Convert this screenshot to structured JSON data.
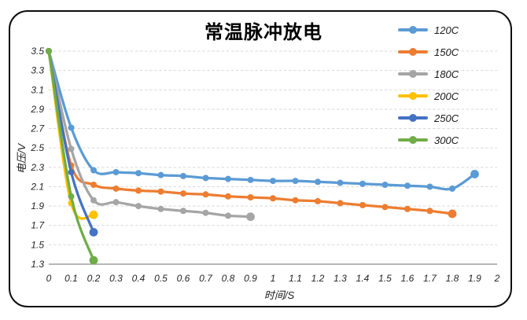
{
  "chart": {
    "title": "常温脉冲放电",
    "x_axis_title": "时间/S",
    "y_axis_title": "电压/V"
  },
  "chart_data": {
    "type": "line",
    "title": "常温脉冲放电",
    "xlabel": "时间/S",
    "ylabel": "电压/V",
    "xlim": [
      0,
      2
    ],
    "ylim": [
      1.3,
      3.5
    ],
    "x_ticks": [
      "0",
      "0.1",
      "0.2",
      "0.3",
      "0.4",
      "0.5",
      "0.6",
      "0.7",
      "0.8",
      "0.9",
      "1",
      "1.1",
      "1.2",
      "1.3",
      "1.4",
      "1.5",
      "1.6",
      "1.7",
      "1.8",
      "1.9",
      "2"
    ],
    "y_ticks": [
      "3.5",
      "3.3",
      "3.1",
      "2.9",
      "2.7",
      "2.5",
      "2.3",
      "2.1",
      "1.9",
      "1.7",
      "1.5",
      "1.3"
    ],
    "grid": "horizontal dashed gridlines every 0.2 V, solid axis line at 1.3",
    "legend_position": "top-right",
    "marker": "circle",
    "smooth_lines": true,
    "series": [
      {
        "name": "120C",
        "color": "#5B9BD5",
        "x": [
          0,
          0.1,
          0.2,
          0.3,
          0.4,
          0.5,
          0.6,
          0.7,
          0.8,
          0.9,
          1,
          1.1,
          1.2,
          1.3,
          1.4,
          1.5,
          1.6,
          1.7,
          1.8,
          1.9
        ],
        "y": [
          3.5,
          2.71,
          2.27,
          2.25,
          2.24,
          2.22,
          2.21,
          2.19,
          2.18,
          2.17,
          2.16,
          2.16,
          2.15,
          2.14,
          2.13,
          2.12,
          2.11,
          2.1,
          2.08,
          2.23
        ]
      },
      {
        "name": "150C",
        "color": "#ED7D31",
        "x": [
          0,
          0.1,
          0.2,
          0.3,
          0.4,
          0.5,
          0.6,
          0.7,
          0.8,
          0.9,
          1,
          1.1,
          1.2,
          1.3,
          1.4,
          1.5,
          1.6,
          1.7,
          1.8
        ],
        "y": [
          3.5,
          2.32,
          2.12,
          2.08,
          2.06,
          2.05,
          2.03,
          2.02,
          2.0,
          1.99,
          1.98,
          1.96,
          1.95,
          1.93,
          1.91,
          1.89,
          1.87,
          1.85,
          1.82
        ]
      },
      {
        "name": "180C",
        "color": "#A5A5A5",
        "x": [
          0,
          0.1,
          0.2,
          0.3,
          0.4,
          0.5,
          0.6,
          0.7,
          0.8,
          0.9
        ],
        "y": [
          3.5,
          2.49,
          1.96,
          1.94,
          1.9,
          1.87,
          1.85,
          1.83,
          1.8,
          1.79
        ]
      },
      {
        "name": "200C",
        "color": "#FFC000",
        "x": [
          0,
          0.1,
          0.2
        ],
        "y": [
          3.5,
          1.93,
          1.81
        ]
      },
      {
        "name": "250C",
        "color": "#4472C4",
        "x": [
          0,
          0.1,
          0.2
        ],
        "y": [
          3.5,
          2.25,
          1.63
        ]
      },
      {
        "name": "300C",
        "color": "#70AD47",
        "x": [
          0,
          0.1,
          0.2
        ],
        "y": [
          3.5,
          2.0,
          1.34
        ]
      }
    ]
  },
  "style": {
    "gridline_color": "#D9D9D9",
    "axis_line_color": "#A0A0A0",
    "tick_label_color": "#262626",
    "border_color": "#0d0d0d",
    "background": "#FFFFFF"
  }
}
